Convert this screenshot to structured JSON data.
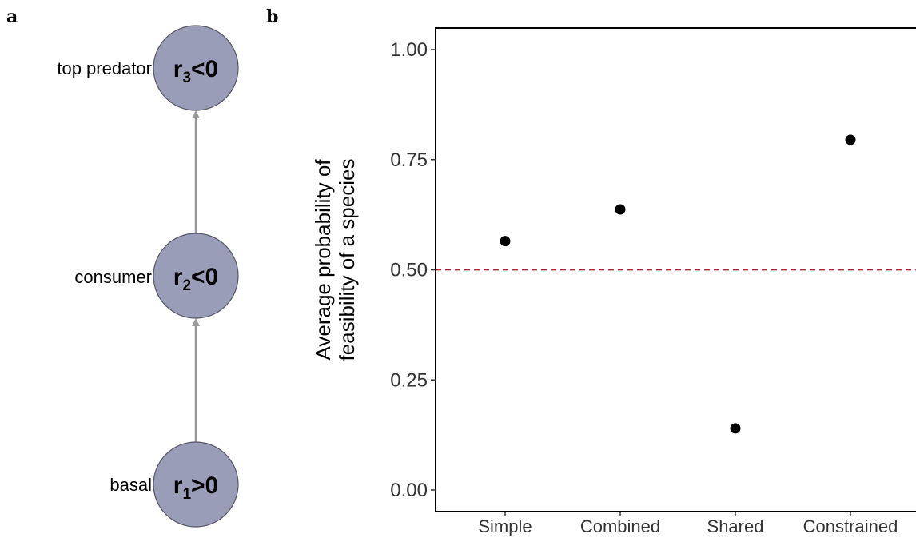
{
  "panels": {
    "a": "a",
    "b": "b"
  },
  "food_web": {
    "nodes": [
      {
        "label": "top predator",
        "rate_var": "r",
        "rate_sub": "3",
        "rate_rel": "<0"
      },
      {
        "label": "consumer",
        "rate_var": "r",
        "rate_sub": "2",
        "rate_rel": "<0"
      },
      {
        "label": "basal",
        "rate_var": "r",
        "rate_sub": "1",
        "rate_rel": ">0"
      }
    ],
    "colors": {
      "node_fill": "#9a9db8",
      "node_stroke": "#555566",
      "edge": "#999999"
    }
  },
  "chart_data": {
    "type": "scatter",
    "categories": [
      "Simple",
      "Combined",
      "Shared",
      "Constrained"
    ],
    "values": [
      0.565,
      0.637,
      0.14,
      0.795
    ],
    "ylabel_lines": [
      "Average probability of",
      "feasibility of a species"
    ],
    "ylim": [
      0,
      1
    ],
    "yticks": [
      "0.00",
      "0.25",
      "0.50",
      "0.75",
      "1.00"
    ],
    "reference_line": {
      "y": 0.5,
      "style": "dashed",
      "color": "#a03030"
    },
    "grid": false,
    "point_color": "#000000"
  }
}
